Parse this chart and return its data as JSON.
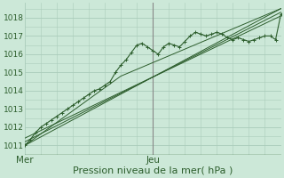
{
  "bg_color": "#cce8d8",
  "grid_color": "#aaccbb",
  "line_color": "#2d5e2d",
  "vline_color": "#888888",
  "x_tick_labels": [
    "Mer",
    "Jeu"
  ],
  "x_tick_positions": [
    0,
    48
  ],
  "xlabel": "Pression niveau de la mer( hPa )",
  "ylim": [
    1010.5,
    1018.8
  ],
  "xlim": [
    0,
    96
  ],
  "yticks": [
    1011,
    1012,
    1013,
    1014,
    1015,
    1016,
    1017,
    1018
  ],
  "vline_x": 48,
  "main_line_x": [
    0,
    2,
    4,
    6,
    8,
    10,
    12,
    14,
    16,
    18,
    20,
    22,
    24,
    26,
    28,
    30,
    32,
    34,
    36,
    38,
    40,
    42,
    44,
    46,
    48,
    50,
    52,
    54,
    56,
    58,
    60,
    62,
    64,
    66,
    68,
    70,
    72,
    74,
    76,
    78,
    80,
    82,
    84,
    86,
    88,
    90,
    92,
    94,
    96
  ],
  "main_line_y": [
    1011.0,
    1011.3,
    1011.7,
    1012.0,
    1012.2,
    1012.4,
    1012.6,
    1012.8,
    1013.0,
    1013.2,
    1013.4,
    1013.6,
    1013.8,
    1014.0,
    1014.1,
    1014.3,
    1014.5,
    1015.0,
    1015.4,
    1015.7,
    1016.1,
    1016.5,
    1016.6,
    1016.4,
    1016.2,
    1016.0,
    1016.4,
    1016.6,
    1016.5,
    1016.4,
    1016.7,
    1017.0,
    1017.2,
    1017.1,
    1017.0,
    1017.1,
    1017.2,
    1017.1,
    1016.9,
    1016.8,
    1016.9,
    1016.8,
    1016.7,
    1016.8,
    1016.9,
    1017.0,
    1017.0,
    1016.8,
    1018.2
  ],
  "smooth_lines": [
    {
      "x": [
        0,
        96
      ],
      "y": [
        1011.0,
        1018.5
      ]
    },
    {
      "x": [
        0,
        96
      ],
      "y": [
        1011.2,
        1018.3
      ]
    },
    {
      "x": [
        0,
        96
      ],
      "y": [
        1011.4,
        1018.1
      ]
    },
    {
      "x": [
        0,
        36,
        96
      ],
      "y": [
        1011.0,
        1014.8,
        1018.5
      ]
    }
  ],
  "ytick_fontsize": 6.5,
  "xtick_fontsize": 7.5,
  "xlabel_fontsize": 8
}
